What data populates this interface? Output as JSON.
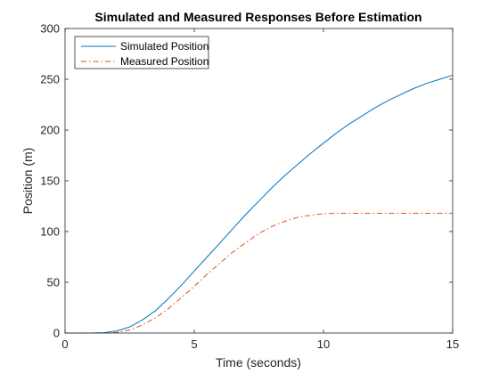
{
  "chart_data": {
    "type": "line",
    "title": "Simulated and Measured Responses Before Estimation",
    "xlabel": "Time (seconds)",
    "ylabel": "Position (m)",
    "xlim": [
      0,
      15
    ],
    "ylim": [
      0,
      300
    ],
    "xticks": [
      0,
      5,
      10,
      15
    ],
    "yticks": [
      0,
      50,
      100,
      150,
      200,
      250,
      300
    ],
    "xtick_labels": [
      "0",
      "5",
      "10",
      "15"
    ],
    "ytick_labels": [
      "0",
      "50",
      "100",
      "150",
      "200",
      "250",
      "300"
    ],
    "grid": false,
    "legend_position": "top-left",
    "series": [
      {
        "name": "Simulated Position",
        "color": "#0072BD",
        "line_style": "solid",
        "x": [
          0,
          0.5,
          1.0,
          1.5,
          2.0,
          2.5,
          3.0,
          3.5,
          4.0,
          4.5,
          5.0,
          5.5,
          6.0,
          6.5,
          7.0,
          7.5,
          8.0,
          8.5,
          9.0,
          9.5,
          10.0,
          10.5,
          11.0,
          11.5,
          12.0,
          12.5,
          13.0,
          13.5,
          14.0,
          14.5,
          15.0
        ],
        "y": [
          0,
          0,
          0,
          0.3,
          2,
          6,
          13,
          22,
          34,
          47,
          61,
          75,
          89,
          103,
          117,
          130,
          143,
          155,
          166,
          177,
          187,
          197,
          206,
          214,
          222,
          229,
          235,
          241,
          246,
          250,
          254
        ]
      },
      {
        "name": "Measured Position",
        "color": "#D95319",
        "line_style": "dash-dot",
        "x": [
          0,
          0.5,
          1.0,
          1.5,
          2.0,
          2.5,
          3.0,
          3.5,
          4.0,
          4.5,
          5.0,
          5.5,
          6.0,
          6.5,
          7.0,
          7.5,
          8.0,
          8.5,
          9.0,
          9.5,
          10.0,
          10.5,
          11.0,
          11.5,
          12.0,
          12.5,
          13.0,
          13.5,
          14.0,
          14.5,
          15.0
        ],
        "y": [
          0,
          0,
          0,
          0,
          0.5,
          3,
          8,
          15,
          24,
          35,
          46,
          58,
          69,
          80,
          89,
          98,
          105,
          110,
          114,
          116,
          117.5,
          118,
          118,
          118,
          118,
          118,
          118,
          118,
          118,
          118,
          118
        ]
      }
    ]
  }
}
